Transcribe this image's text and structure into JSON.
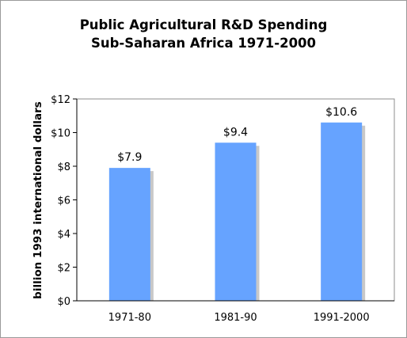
{
  "chart_data": {
    "type": "bar",
    "title_lines": [
      "Public Agricultural R&D Spending",
      "Sub-Saharan Africa 1971-2000"
    ],
    "xlabel": "",
    "ylabel": "billion 1993 international dollars",
    "categories": [
      "1971-80",
      "1981-90",
      "1991-2000"
    ],
    "values": [
      7.9,
      9.4,
      10.6
    ],
    "data_labels": [
      "$7.9",
      "$9.4",
      "$10.6"
    ],
    "ylim": [
      0,
      12
    ],
    "yticks": [
      0,
      2,
      4,
      6,
      8,
      10,
      12
    ],
    "ytick_labels": [
      "$0",
      "$2",
      "$4",
      "$6",
      "$8",
      "$10",
      "$12"
    ],
    "grid": false,
    "legend": "none",
    "bar_color": "#66a3ff",
    "shadow_color": "#c8c8c8"
  }
}
